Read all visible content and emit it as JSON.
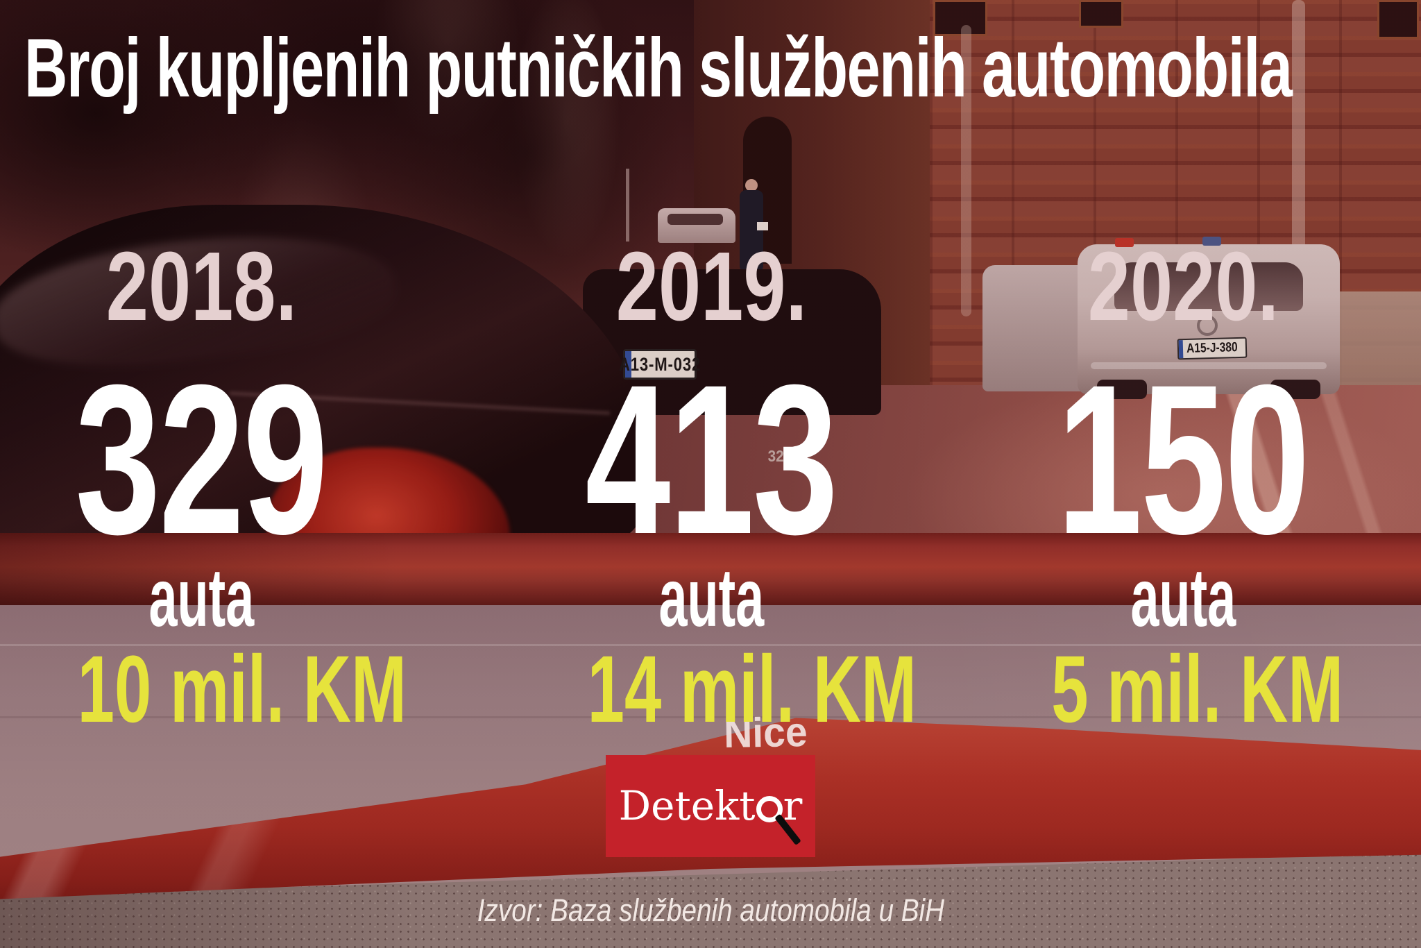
{
  "title": "Broj kupljenih putničkih službenih automobila",
  "columns": [
    {
      "year": "2018.",
      "count": "329",
      "unit": "auta",
      "cost": "10 mil. KM"
    },
    {
      "year": "2019.",
      "count": "413",
      "unit": "auta",
      "cost": "14 mil. KM"
    },
    {
      "year": "2020.",
      "count": "150",
      "unit": "auta",
      "cost": "5 mil. KM"
    }
  ],
  "source": "Izvor: Baza službenih automobila u BiH",
  "logo": {
    "full": "Detektor",
    "prefix": "Detekt",
    "suffix": "r"
  },
  "photo": {
    "bmw_plate": "A13-M-032",
    "bmw_badge": "320d",
    "police_plate": "A15-J-380",
    "barrier_brand": "Nice"
  },
  "colors": {
    "accent_red": "#c4222a",
    "highlight_yellow": "#e6e33c",
    "year_pink": "#e5d0d0",
    "text_white": "#ffffff"
  },
  "chart_data": {
    "type": "bar",
    "categories": [
      "2018.",
      "2019.",
      "2020."
    ],
    "series": [
      {
        "name": "auta",
        "values": [
          329,
          413,
          150
        ]
      },
      {
        "name": "mil. KM",
        "values": [
          10,
          14,
          5
        ]
      }
    ],
    "title": "Broj kupljenih putničkih službenih automobila",
    "source": "Izvor: Baza službenih automobila u BiH",
    "legend_position": "none",
    "grid": false
  }
}
